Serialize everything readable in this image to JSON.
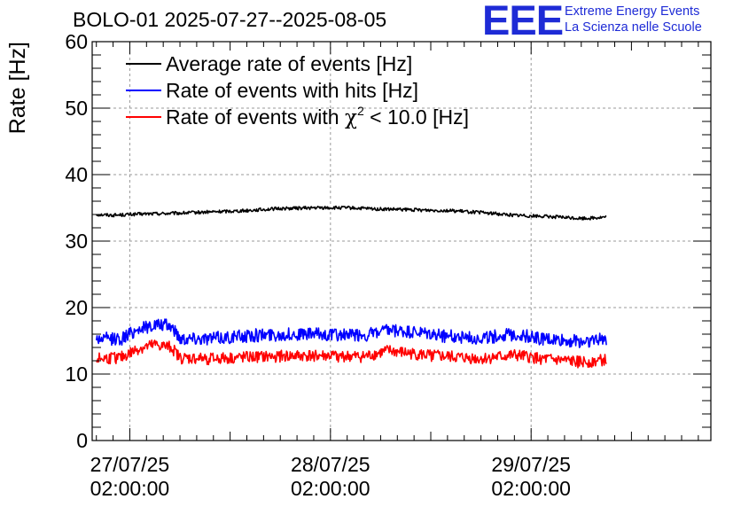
{
  "header": {
    "title": "BOLO-01 2025-07-27--2025-08-05",
    "logo_letters": "EEE",
    "logo_line1": "Extreme Energy Events",
    "logo_line2": "La Scienza nelle Scuole"
  },
  "colors": {
    "average": "#000000",
    "hits": "#0000ff",
    "chi2": "#ff0000",
    "logo": "#1e2bd6",
    "grid": "#999999"
  },
  "chart_data": {
    "type": "line",
    "ylabel": "Rate [Hz]",
    "xlabel": "",
    "ylim": [
      0,
      60
    ],
    "xlim": [
      "2025-07-26 21:30",
      "2025-07-29 23:30"
    ],
    "yticks": [
      "0",
      "10",
      "20",
      "30",
      "40",
      "50",
      "60"
    ],
    "xticks": [
      {
        "x": "2025-07-27 02:00",
        "date": "27/07/25",
        "time": "02:00:00"
      },
      {
        "x": "2025-07-28 02:00",
        "date": "28/07/25",
        "time": "02:00:00"
      },
      {
        "x": "2025-07-29 02:00",
        "date": "29/07/25",
        "time": "02:00:00"
      }
    ],
    "grid": true,
    "legend_position": "top-left",
    "series": [
      {
        "name": "Average rate of events [Hz]",
        "legend_main": "Average rate of events [Hz]",
        "color": "#000000",
        "noise": 0.25,
        "points": [
          [
            "2025-07-26 22:00",
            34.0
          ],
          [
            "2025-07-27 00:00",
            33.9
          ],
          [
            "2025-07-27 04:00",
            34.1
          ],
          [
            "2025-07-27 08:00",
            34.2
          ],
          [
            "2025-07-27 12:00",
            34.4
          ],
          [
            "2025-07-27 16:00",
            34.6
          ],
          [
            "2025-07-27 20:00",
            34.9
          ],
          [
            "2025-07-28 00:00",
            35.0
          ],
          [
            "2025-07-28 04:00",
            35.0
          ],
          [
            "2025-07-28 08:00",
            34.8
          ],
          [
            "2025-07-28 12:00",
            34.7
          ],
          [
            "2025-07-28 16:00",
            34.6
          ],
          [
            "2025-07-28 20:00",
            34.3
          ],
          [
            "2025-07-29 00:00",
            33.9
          ],
          [
            "2025-07-29 04:00",
            33.7
          ],
          [
            "2025-07-29 08:00",
            33.4
          ],
          [
            "2025-07-29 11:00",
            33.6
          ]
        ]
      },
      {
        "name": "Rate of events with hits [Hz]",
        "legend_main": "Rate of events with hits [Hz]",
        "color": "#0000ff",
        "noise": 1.0,
        "points": [
          [
            "2025-07-26 22:00",
            15.3
          ],
          [
            "2025-07-27 01:00",
            15.3
          ],
          [
            "2025-07-27 03:00",
            16.8
          ],
          [
            "2025-07-27 05:00",
            17.4
          ],
          [
            "2025-07-27 07:00",
            17.2
          ],
          [
            "2025-07-27 08:00",
            15.4
          ],
          [
            "2025-07-27 12:00",
            15.4
          ],
          [
            "2025-07-27 18:00",
            15.9
          ],
          [
            "2025-07-28 00:00",
            16.0
          ],
          [
            "2025-07-28 06:00",
            15.8
          ],
          [
            "2025-07-28 09:00",
            16.5
          ],
          [
            "2025-07-28 12:00",
            16.2
          ],
          [
            "2025-07-28 16:00",
            15.7
          ],
          [
            "2025-07-28 20:00",
            15.4
          ],
          [
            "2025-07-29 00:00",
            16.0
          ],
          [
            "2025-07-29 04:00",
            15.2
          ],
          [
            "2025-07-29 08:00",
            14.9
          ],
          [
            "2025-07-29 11:00",
            15.3
          ]
        ]
      },
      {
        "name": "Rate of events with χ² < 10.0 [Hz]",
        "legend_main": "Rate of events with ",
        "legend_chi": "χ",
        "legend_sup": "2",
        "legend_rest": " < 10.0 [Hz]",
        "color": "#ff0000",
        "noise": 0.9,
        "points": [
          [
            "2025-07-26 22:00",
            12.3
          ],
          [
            "2025-07-27 01:00",
            12.5
          ],
          [
            "2025-07-27 03:00",
            13.8
          ],
          [
            "2025-07-27 05:00",
            14.4
          ],
          [
            "2025-07-27 07:00",
            14.0
          ],
          [
            "2025-07-27 08:00",
            12.4
          ],
          [
            "2025-07-27 12:00",
            12.3
          ],
          [
            "2025-07-27 18:00",
            12.6
          ],
          [
            "2025-07-28 00:00",
            12.8
          ],
          [
            "2025-07-28 06:00",
            12.6
          ],
          [
            "2025-07-28 09:00",
            13.5
          ],
          [
            "2025-07-28 12:00",
            13.0
          ],
          [
            "2025-07-28 16:00",
            12.6
          ],
          [
            "2025-07-28 20:00",
            12.3
          ],
          [
            "2025-07-29 00:00",
            12.8
          ],
          [
            "2025-07-29 04:00",
            12.2
          ],
          [
            "2025-07-29 08:00",
            11.8
          ],
          [
            "2025-07-29 11:00",
            12.1
          ]
        ]
      }
    ]
  }
}
